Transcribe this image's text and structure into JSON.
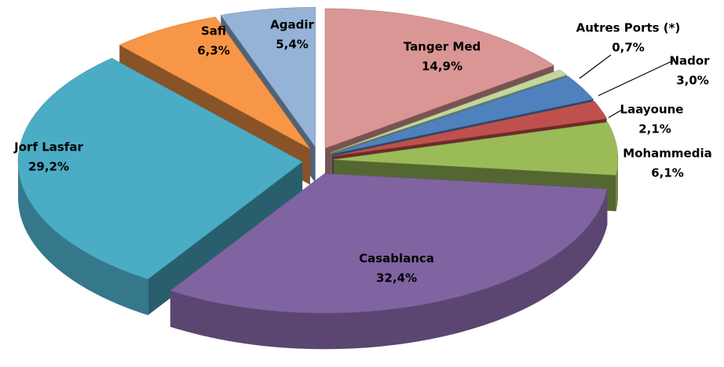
{
  "chart_data": {
    "type": "pie3d",
    "categories": [
      "Tanger Med",
      "Autres Ports (*)",
      "Nador",
      "Laayoune",
      "Mohammedia",
      "Casablanca",
      "Jorf Lasfar",
      "Safi",
      "Agadir"
    ],
    "values": [
      14.9,
      0.7,
      3.0,
      2.1,
      6.1,
      32.4,
      29.2,
      6.3,
      5.4
    ],
    "value_labels": [
      "14,9%",
      "0,7%",
      "3,0%",
      "2,1%",
      "6,1%",
      "32,4%",
      "29,2%",
      "6,3%",
      "5,4%"
    ],
    "colors": [
      "#d99694",
      "#c3d69b",
      "#4f81bd",
      "#c0504d",
      "#9bbb59",
      "#8064a2",
      "#4bacc6",
      "#f79646",
      "#95b3d7"
    ]
  }
}
